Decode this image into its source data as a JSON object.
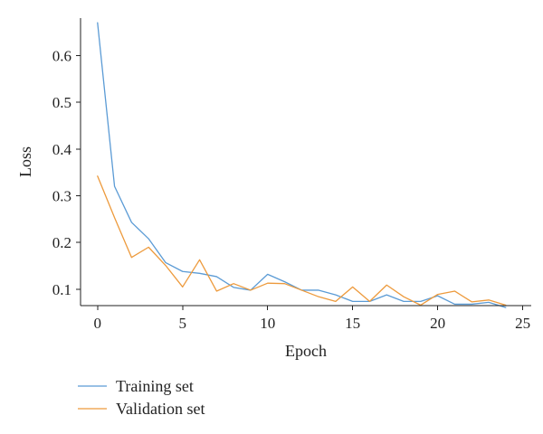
{
  "chart_data": {
    "type": "line",
    "title": "",
    "xlabel": "Epoch",
    "ylabel": "Loss",
    "xlim": [
      -1,
      25.5
    ],
    "ylim": [
      0.065,
      0.68
    ],
    "xticks": [
      0,
      5,
      10,
      15,
      20,
      25
    ],
    "yticks": [
      0.1,
      0.2,
      0.3,
      0.4,
      0.5,
      0.6
    ],
    "xtick_labels": [
      "0",
      "5",
      "10",
      "15",
      "20",
      "25"
    ],
    "ytick_labels": [
      "0.1",
      "0.2",
      "0.3",
      "0.4",
      "0.5",
      "0.6"
    ],
    "legend_position": "bottom-left",
    "grid": false,
    "x": [
      0,
      1,
      2,
      3,
      4,
      5,
      6,
      7,
      8,
      9,
      10,
      11,
      12,
      13,
      14,
      15,
      16,
      17,
      18,
      19,
      20,
      21,
      22,
      23,
      24
    ],
    "series": [
      {
        "name": "Training set",
        "color": "#5b9bd5",
        "values": [
          0.67,
          0.32,
          0.243,
          0.208,
          0.157,
          0.138,
          0.134,
          0.127,
          0.104,
          0.098,
          0.132,
          0.116,
          0.098,
          0.098,
          0.088,
          0.074,
          0.074,
          0.088,
          0.074,
          0.074,
          0.086,
          0.068,
          0.068,
          0.072,
          0.061
        ]
      },
      {
        "name": "Validation set",
        "color": "#ed9a3c",
        "values": [
          0.342,
          0.253,
          0.168,
          0.19,
          0.151,
          0.105,
          0.163,
          0.096,
          0.112,
          0.098,
          0.113,
          0.112,
          0.098,
          0.084,
          0.074,
          0.105,
          0.074,
          0.109,
          0.084,
          0.066,
          0.089,
          0.096,
          0.073,
          0.077,
          0.066
        ]
      }
    ]
  }
}
